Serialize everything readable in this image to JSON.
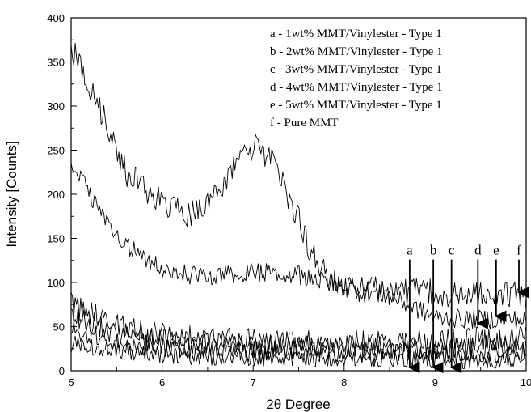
{
  "chart_data": {
    "type": "line",
    "xlabel": "2θ Degree",
    "ylabel": "Intensity [Counts]",
    "xlim": [
      5,
      10
    ],
    "ylim": [
      0,
      400
    ],
    "x_ticks": [
      "5",
      "6",
      "7",
      "8",
      "9",
      "10"
    ],
    "y_ticks": [
      "0",
      "50",
      "100",
      "150",
      "200",
      "250",
      "300",
      "350",
      "400"
    ],
    "grid": false,
    "legend_position": "top-right",
    "legend": [
      "a - 1wt% MMT/Vinylester - Type 1",
      "b - 2wt% MMT/Vinylester - Type 1",
      "c - 3wt% MMT/Vinylester - Type 1",
      "d - 4wt% MMT/Vinylester - Type 1",
      "e - 5wt% MMT/Vinylester - Type 1",
      "f - Pure MMT"
    ],
    "series": [
      {
        "key": "a",
        "x": [
          5.0,
          5.5,
          6.0,
          6.5,
          7.0,
          7.5,
          8.0,
          8.5,
          9.0,
          9.5,
          10.0
        ],
        "y": [
          30,
          24,
          18,
          16,
          15,
          14,
          14,
          13,
          12,
          12,
          12
        ]
      },
      {
        "key": "b",
        "x": [
          5.0,
          5.5,
          6.0,
          6.5,
          7.0,
          7.5,
          8.0,
          8.5,
          9.0,
          9.5,
          10.0
        ],
        "y": [
          45,
          32,
          26,
          24,
          22,
          22,
          21,
          20,
          20,
          20,
          20
        ]
      },
      {
        "key": "c",
        "x": [
          5.0,
          5.5,
          6.0,
          6.5,
          7.0,
          7.5,
          8.0,
          8.5,
          9.0,
          9.5,
          10.0
        ],
        "y": [
          65,
          42,
          34,
          30,
          28,
          27,
          26,
          25,
          25,
          26,
          27
        ]
      },
      {
        "key": "d",
        "x": [
          5.0,
          5.5,
          6.0,
          6.5,
          7.0,
          7.5,
          8.0,
          8.5,
          9.0,
          9.5,
          10.0
        ],
        "y": [
          75,
          50,
          40,
          36,
          34,
          32,
          32,
          33,
          34,
          36,
          37
        ]
      },
      {
        "key": "e",
        "x": [
          5.0,
          5.2,
          5.5,
          6.0,
          6.5,
          7.0,
          7.5,
          8.0,
          8.5,
          9.0,
          9.5,
          10.0
        ],
        "y": [
          240,
          200,
          150,
          115,
          105,
          112,
          108,
          95,
          85,
          60,
          58,
          58
        ]
      },
      {
        "key": "f",
        "x": [
          5.0,
          5.1,
          5.3,
          5.6,
          6.0,
          6.3,
          6.6,
          6.9,
          7.05,
          7.25,
          7.5,
          7.7,
          7.9,
          8.2,
          8.6,
          9.0,
          9.5,
          10.0
        ],
        "y": [
          365,
          350,
          300,
          225,
          190,
          175,
          200,
          245,
          255,
          230,
          170,
          120,
          100,
          92,
          90,
          88,
          87,
          86
        ]
      }
    ],
    "annotations": [
      {
        "label": "a",
        "x": 8.72,
        "y_from": 126,
        "y_to": 0
      },
      {
        "label": "b",
        "x": 8.98,
        "y_from": 126,
        "y_to": 0
      },
      {
        "label": "c",
        "x": 9.18,
        "y_from": 126,
        "y_to": 0
      },
      {
        "label": "d",
        "x": 9.47,
        "y_from": 126,
        "y_to": 50
      },
      {
        "label": "e",
        "x": 9.67,
        "y_from": 126,
        "y_to": 58
      },
      {
        "label": "f",
        "x": 9.92,
        "y_from": 126,
        "y_to": 85
      }
    ]
  }
}
